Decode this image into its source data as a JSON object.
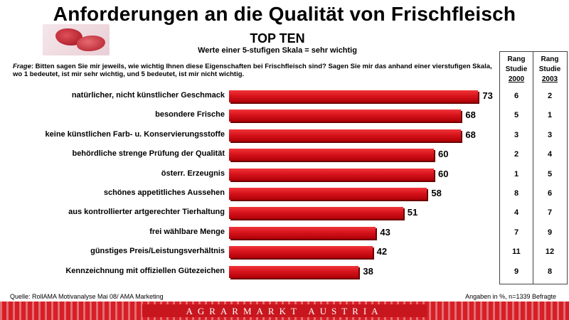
{
  "title": "Anforderungen an die Qualität von Frischfleisch",
  "subtitle": "TOP TEN",
  "scale_note": "Werte einer 5-stufigen Skala = sehr wichtig",
  "question_label": "Frage",
  "question_text": ": Bitten sagen Sie mir jeweils, wie wichtig Ihnen diese Eigenschaften bei Frischfleisch sind? Sagen Sie mir das anhand einer vierstufigen Skala, wo 1 bedeutet, ist mir sehr wichtig, und 5 bedeutet, ist mir nicht wichtig.",
  "rank_headers": [
    {
      "line1": "Rang",
      "line2": "Studie",
      "year": "2000"
    },
    {
      "line1": "Rang",
      "line2": "Studie",
      "year": "2003"
    }
  ],
  "footer": {
    "source": "Quelle: RollAMA Motivanalyse Mai 08/ AMA Marketing",
    "note": "Angaben in %, n=1339 Befragte"
  },
  "brand": "AGRARMARKT AUSTRIA",
  "colors": {
    "bar": "#d8141c",
    "band": "#d61f26"
  },
  "chart_data": {
    "type": "bar",
    "orientation": "horizontal",
    "categories": [
      "natürlicher, nicht künstlicher Geschmack",
      "besondere Frische",
      "keine künstlichen Farb- u. Konservierungsstoffe",
      "behördliche strenge Prüfung der Qualität",
      "österr. Erzeugnis",
      "schönes appetitliches Aussehen",
      "aus kontrollierter artgerechter Tierhaltung",
      "frei wählbare Menge",
      "günstiges Preis/Leistungsverhältnis",
      "Kennzeichnung mit offiziellen Gütezeichen"
    ],
    "values": [
      73,
      68,
      68,
      60,
      60,
      58,
      51,
      43,
      42,
      38
    ],
    "rank_2000": [
      "6",
      "5",
      "3",
      "2",
      "1",
      "8",
      "4",
      "7",
      "11",
      "9"
    ],
    "rank_2003": [
      "2",
      "1",
      "3",
      "4",
      "5",
      "6",
      "7",
      "9",
      "12",
      "8"
    ],
    "xlim": [
      0,
      100
    ]
  }
}
